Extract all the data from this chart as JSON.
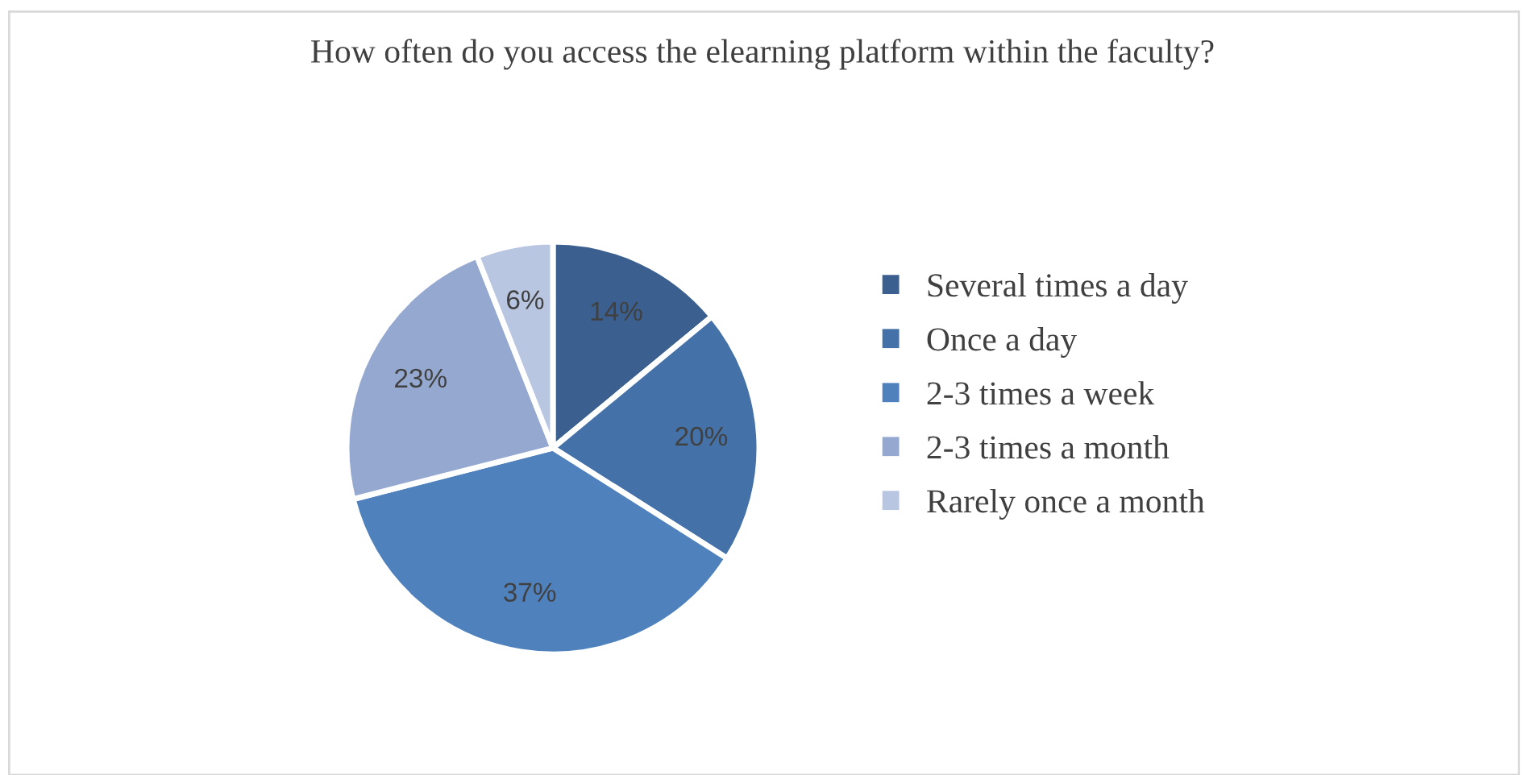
{
  "chart_data": {
    "type": "pie",
    "title": "How often do you access the elearning platform within the faculty?",
    "categories": [
      "Several times a day",
      "Once a day",
      "2-3 times a week",
      "2-3 times a month",
      "Rarely once a month"
    ],
    "values": [
      14,
      20,
      37,
      23,
      6
    ],
    "colors": [
      "#3b5f8e",
      "#4472a8",
      "#4f81bd",
      "#95a9d0",
      "#b9c6e1"
    ],
    "value_labels": [
      "14%",
      "20%",
      "37%",
      "23%",
      "6%"
    ],
    "legend": "right"
  }
}
